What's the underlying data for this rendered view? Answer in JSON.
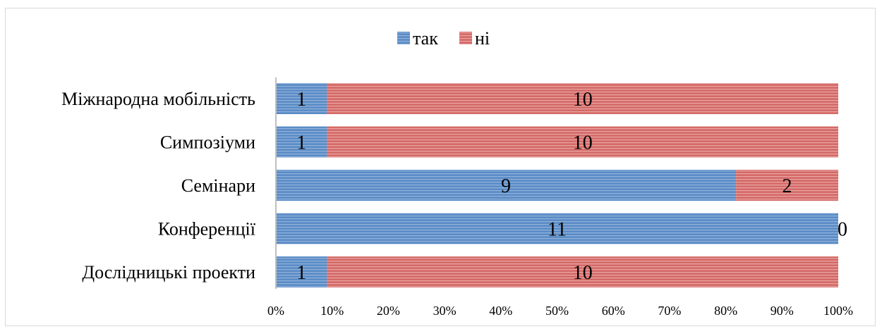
{
  "chart_data": {
    "type": "bar",
    "orientation": "horizontal",
    "stacked": "percent",
    "categories": [
      "Міжнародна мобільність",
      "Симпозіуми",
      "Семінари",
      "Конференції",
      "Дослідницькі проекти"
    ],
    "series": [
      {
        "name": "так",
        "values": [
          1,
          1,
          9,
          11,
          1
        ],
        "color": "#4f81bd"
      },
      {
        "name": "ні",
        "values": [
          10,
          10,
          2,
          0,
          10
        ],
        "color": "#c0504d"
      }
    ],
    "x_ticks": [
      "0%",
      "10%",
      "20%",
      "30%",
      "40%",
      "50%",
      "60%",
      "70%",
      "80%",
      "90%",
      "100%"
    ],
    "xlim": [
      0,
      100
    ],
    "legend_position": "top",
    "grid": false,
    "title": "",
    "xlabel": "",
    "ylabel": ""
  }
}
